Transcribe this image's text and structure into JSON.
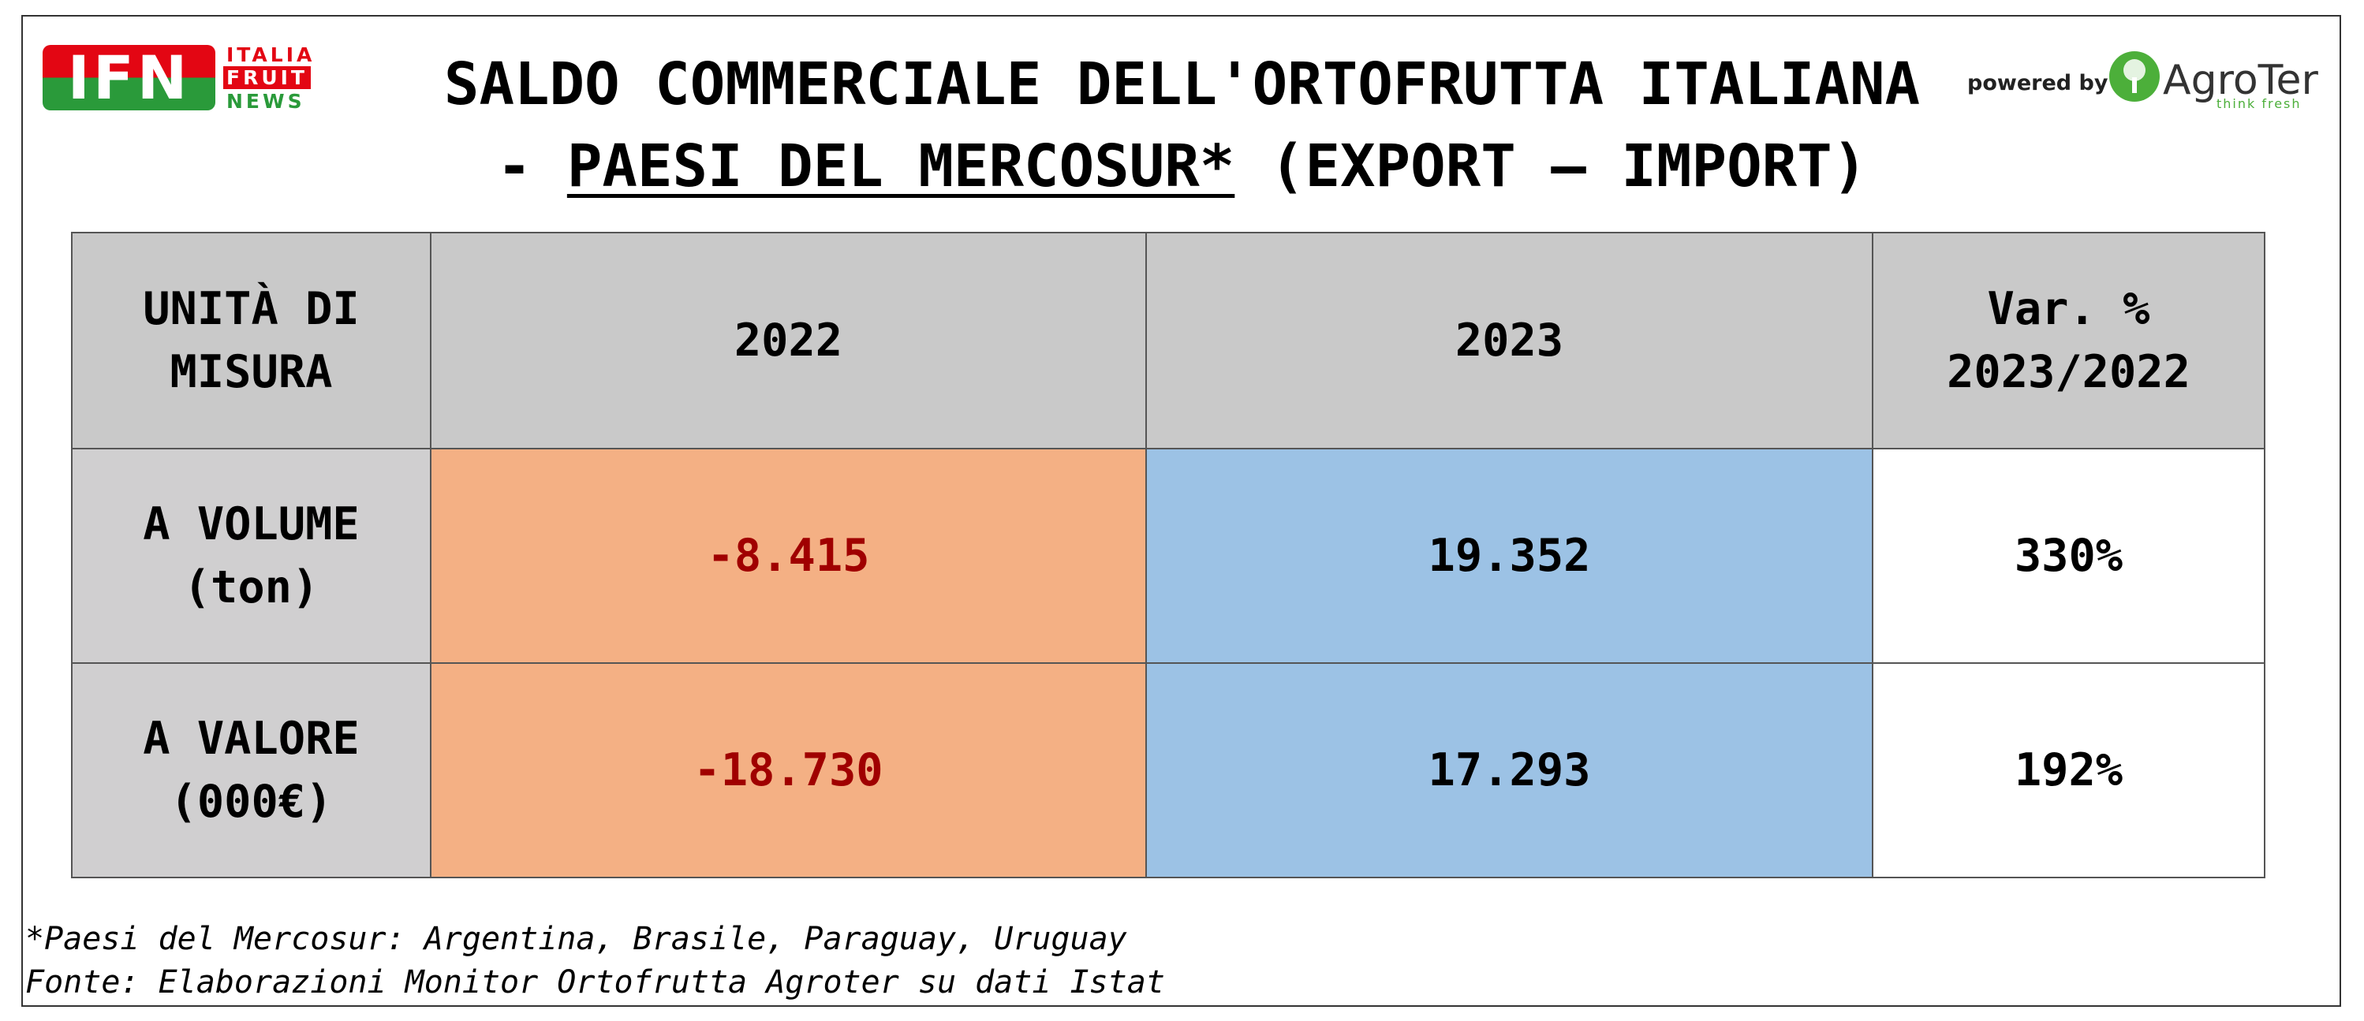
{
  "logo_left": {
    "mark": "IFN",
    "lines": [
      "ITALIA",
      "FRUIT",
      "NEWS"
    ]
  },
  "logo_right": {
    "prefix": "powered by",
    "name": "AgroTer",
    "tagline": "think fresh"
  },
  "header": {
    "title": [
      "SALDO COMMERCIALE DELL'ORTOFRUTTA ITALIANA",
      "-",
      "PAESI DEL MERCOSUR*",
      "(EXPORT – IMPORT)"
    ]
  },
  "table": {
    "columns": [
      "UNITÀ DI MISURA",
      "2022",
      "2023",
      "Var. % 2023/2022"
    ],
    "rows": [
      [
        "A VOLUME (ton)",
        "-8.415",
        "19.352",
        "330%"
      ],
      [
        "A VALORE (000€)",
        "-18.730",
        "17.293",
        "192%"
      ]
    ]
  },
  "footnotes": [
    "*Paesi del Mercosur: Argentina, Brasile, Paraguay, Uruguay",
    "Fonte: Elaborazioni Monitor Ortofrutta Agroter su dati Istat"
  ]
}
